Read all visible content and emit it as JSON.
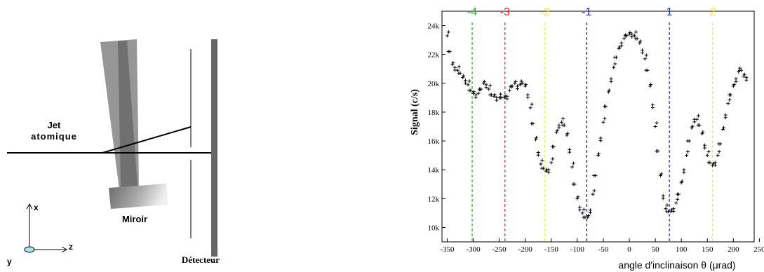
{
  "diagram": {
    "jet_label_line1": "Jet",
    "jet_label_line2": "atomique",
    "mirror_label": "Miroir",
    "detector_label": "Détecteur",
    "axes": {
      "x": "x",
      "y": "y",
      "z": "z"
    }
  },
  "chart_data": {
    "type": "scatter",
    "xlabel": "angle d'inclinaison θ (μrad)",
    "ylabel": "Signal (c/s)",
    "xlim": [
      -360,
      240
    ],
    "ylim": [
      9000,
      25000
    ],
    "x_ticks": [
      -350,
      -300,
      -250,
      -200,
      -150,
      -100,
      -50,
      0,
      50,
      100,
      150,
      200,
      250
    ],
    "y_ticks": [
      10000,
      12000,
      14000,
      16000,
      18000,
      20000,
      22000,
      24000
    ],
    "y_tick_labels": [
      "10k",
      "12k",
      "14k",
      "16k",
      "18k",
      "20k",
      "22k",
      "24k"
    ],
    "markers": [
      {
        "label": "-4",
        "x": -302,
        "color": "#22bb22"
      },
      {
        "label": "-3",
        "x": -239,
        "color": "#ee2222"
      },
      {
        "label": "-2",
        "x": -162,
        "color": "#eeee33"
      },
      {
        "label": "-1",
        "x": -82,
        "color": "#2222aa"
      },
      {
        "label": "1",
        "x": 77,
        "color": "#2233cc"
      },
      {
        "label": "2",
        "x": 160,
        "color": "#eeee33"
      }
    ],
    "series": [
      {
        "x": [
          -350,
          -345,
          -340,
          -335,
          -330,
          -325,
          -320,
          -315,
          -310,
          -305,
          -300,
          -295,
          -290,
          -285,
          -280,
          -275,
          -270,
          -265,
          -260,
          -255,
          -250,
          -245,
          -240,
          -235,
          -230,
          -225,
          -220,
          -215,
          -210,
          -205,
          -200,
          -195,
          -190,
          -185,
          -180,
          -175,
          -170,
          -165,
          -160,
          -155,
          -150,
          -145,
          -140,
          -135,
          -130,
          -125,
          -120,
          -115,
          -110,
          -105,
          -100,
          -95,
          -90,
          -85,
          -80,
          -75,
          -70,
          -65,
          -60,
          -55,
          -50,
          -45,
          -40,
          -35,
          -30,
          -25,
          -20,
          -15,
          -10,
          -5,
          0,
          5,
          10,
          15,
          20,
          25,
          30,
          35,
          40,
          45,
          50,
          55,
          60,
          65,
          70,
          75,
          80,
          85,
          90,
          95,
          100,
          105,
          110,
          115,
          120,
          125,
          130,
          135,
          140,
          145,
          150,
          155,
          160,
          165,
          170,
          175,
          180,
          185,
          190,
          195,
          200,
          205,
          210,
          215,
          220,
          225
        ],
        "y": [
          23300,
          22200,
          21300,
          21100,
          20900,
          20700,
          20400,
          20200,
          19900,
          19500,
          19300,
          19200,
          19300,
          19600,
          20000,
          19900,
          19600,
          19200,
          19100,
          19000,
          19000,
          19000,
          19000,
          19100,
          19500,
          19800,
          20000,
          19800,
          19900,
          20000,
          19800,
          19200,
          18300,
          17200,
          16100,
          15200,
          14400,
          14100,
          13900,
          14000,
          14500,
          15600,
          16600,
          17100,
          17300,
          17100,
          16400,
          15400,
          14200,
          13000,
          12000,
          11400,
          11000,
          10700,
          10700,
          11200,
          12300,
          13600,
          15000,
          16200,
          17300,
          18400,
          19400,
          20300,
          21100,
          21800,
          22400,
          22800,
          23100,
          23300,
          23400,
          23400,
          23300,
          23100,
          22800,
          22300,
          21700,
          20900,
          19800,
          18500,
          17000,
          15300,
          13600,
          12200,
          11300,
          11100,
          11100,
          11300,
          11700,
          12300,
          13100,
          14000,
          15000,
          16000,
          16900,
          17500,
          17500,
          17100,
          16500,
          15700,
          15000,
          14500,
          14300,
          14500,
          15000,
          15800,
          16800,
          17800,
          18600,
          19200,
          19800,
          20300,
          20800,
          20900,
          20500,
          20400
        ]
      }
    ]
  }
}
